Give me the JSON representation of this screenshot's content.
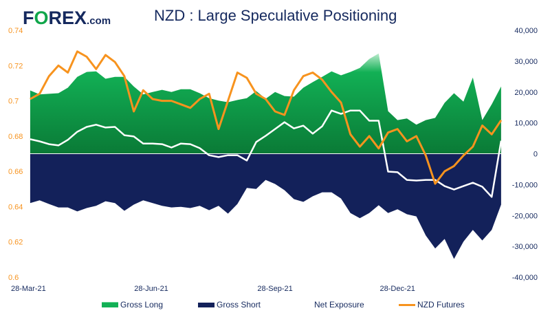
{
  "title": "NZD : Large Speculative Positioning",
  "logo": {
    "text": "FOREX.com"
  },
  "colors": {
    "gross_long": "#12b055",
    "gross_short": "#13215a",
    "net_exposure": "#ffffff",
    "nzd_futures": "#f7931e",
    "left_axis": "#f7931e",
    "right_axis": "#15295e"
  },
  "chart_data": {
    "type": "area",
    "title": "NZD : Large Speculative Positioning",
    "x_tick_labels": [
      "28-Mar-21",
      "28-Jun-21",
      "28-Sep-21",
      "28-Dec-21"
    ],
    "x_tick_dates": [
      "2021-03-28",
      "2021-06-28",
      "2021-09-28",
      "2021-12-28"
    ],
    "left_axis": {
      "ylim": [
        0.6,
        0.74
      ],
      "ticks": [
        "0.74",
        "0.72",
        "0.7",
        "0.68",
        "0.66",
        "0.64",
        "0.62",
        "0.6"
      ]
    },
    "right_axis": {
      "ylim": [
        -40000,
        40000
      ],
      "ticks": [
        "40,000",
        "30,000",
        "20,000",
        "10,000",
        "0",
        "-10,000",
        "-20,000",
        "-30,000",
        "-40,000"
      ]
    },
    "grid": false,
    "legend_placement": "bottom",
    "dates": [
      "2021-03-30",
      "2021-04-06",
      "2021-04-13",
      "2021-04-20",
      "2021-04-27",
      "2021-05-04",
      "2021-05-11",
      "2021-05-18",
      "2021-05-25",
      "2021-06-01",
      "2021-06-08",
      "2021-06-15",
      "2021-06-22",
      "2021-06-29",
      "2021-07-06",
      "2021-07-13",
      "2021-07-20",
      "2021-07-27",
      "2021-08-03",
      "2021-08-10",
      "2021-08-17",
      "2021-08-24",
      "2021-08-31",
      "2021-09-07",
      "2021-09-14",
      "2021-09-21",
      "2021-09-28",
      "2021-10-05",
      "2021-10-12",
      "2021-10-19",
      "2021-10-26",
      "2021-11-02",
      "2021-11-09",
      "2021-11-16",
      "2021-11-23",
      "2021-11-30",
      "2021-12-07",
      "2021-12-14",
      "2021-12-21",
      "2021-12-28",
      "2022-01-04",
      "2022-01-11",
      "2022-01-18",
      "2022-01-25",
      "2022-02-01",
      "2022-02-08",
      "2022-02-15",
      "2022-02-22",
      "2022-03-01",
      "2022-03-08",
      "2022-03-15"
    ],
    "series": [
      {
        "name": "Gross Long",
        "axis": "right",
        "type": "area",
        "values": [
          20500,
          19200,
          19400,
          19600,
          21400,
          24900,
          26500,
          26700,
          24300,
          24900,
          24900,
          21800,
          19200,
          20000,
          20700,
          20000,
          20900,
          20900,
          19600,
          18000,
          17200,
          16700,
          17400,
          18000,
          20300,
          17800,
          20000,
          18700,
          18500,
          21400,
          23200,
          24900,
          26700,
          25400,
          26500,
          27800,
          30700,
          32500,
          13800,
          10900,
          11400,
          9400,
          10900,
          11600,
          16500,
          19600,
          16900,
          24700,
          10900,
          16000,
          21800
        ]
      },
      {
        "name": "Gross Short",
        "axis": "right",
        "type": "area",
        "values": [
          -16000,
          -15100,
          -16300,
          -17400,
          -17400,
          -18700,
          -17600,
          -16900,
          -15400,
          -16000,
          -18500,
          -16500,
          -15100,
          -16000,
          -16900,
          -17400,
          -17200,
          -17600,
          -16900,
          -18300,
          -16900,
          -19400,
          -16300,
          -11100,
          -11400,
          -8500,
          -9800,
          -11800,
          -14700,
          -15600,
          -13800,
          -12500,
          -12500,
          -14500,
          -19200,
          -20900,
          -19200,
          -16700,
          -19200,
          -18000,
          -19600,
          -20300,
          -26500,
          -30700,
          -27600,
          -34100,
          -28500,
          -24700,
          -28100,
          -24700,
          -16500
        ]
      },
      {
        "name": "Net Exposure",
        "axis": "right",
        "type": "line",
        "values": [
          4700,
          4000,
          3100,
          2700,
          4500,
          7100,
          8700,
          9400,
          8500,
          8700,
          6000,
          5600,
          3300,
          3300,
          3100,
          2000,
          3300,
          3100,
          1800,
          -500,
          -1100,
          -500,
          -500,
          -2200,
          3800,
          5800,
          8000,
          10200,
          8200,
          9100,
          6500,
          8900,
          14000,
          12900,
          14000,
          14000,
          10700,
          10700,
          -5800,
          -6000,
          -8500,
          -8700,
          -8500,
          -8500,
          -10500,
          -11600,
          -10500,
          -9400,
          -10700,
          -14000,
          4200
        ]
      },
      {
        "name": "NZD Futures",
        "axis": "left",
        "type": "line",
        "values": [
          0.701,
          0.704,
          0.714,
          0.72,
          0.716,
          0.728,
          0.725,
          0.718,
          0.726,
          0.722,
          0.714,
          0.694,
          0.706,
          0.701,
          0.7,
          0.7,
          0.698,
          0.696,
          0.701,
          0.704,
          0.684,
          0.7,
          0.716,
          0.713,
          0.704,
          0.701,
          0.694,
          0.692,
          0.706,
          0.714,
          0.716,
          0.712,
          0.705,
          0.699,
          0.681,
          0.674,
          0.68,
          0.673,
          0.682,
          0.684,
          0.677,
          0.68,
          0.669,
          0.653,
          0.66,
          0.663,
          0.669,
          0.674,
          0.686,
          0.681,
          0.689
        ]
      }
    ]
  },
  "legend": [
    {
      "label": "Gross Long"
    },
    {
      "label": "Gross Short"
    },
    {
      "label": "Net Exposure"
    },
    {
      "label": "NZD Futures"
    }
  ]
}
